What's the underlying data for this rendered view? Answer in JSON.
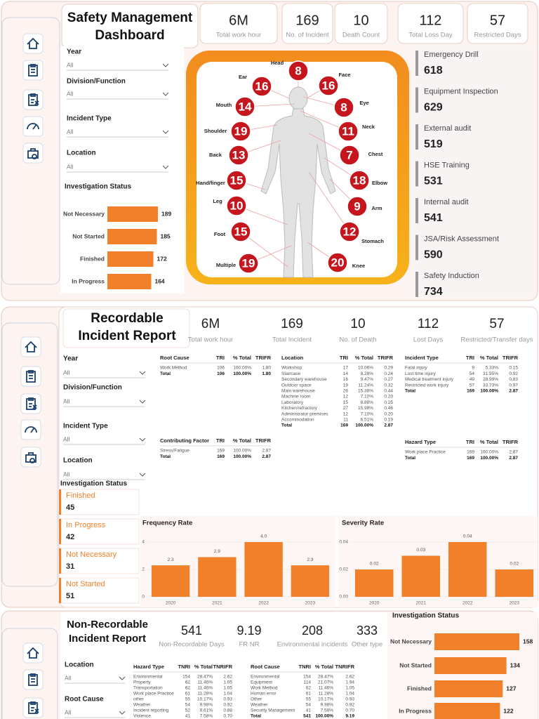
{
  "panel1": {
    "title": "Safety Management Dashboard",
    "kpis": [
      {
        "value": "6M",
        "label": "Total work hour"
      },
      {
        "value": 169,
        "label": "No. of Incident"
      },
      {
        "value": 10,
        "label": "Death Count"
      },
      {
        "value": 112,
        "label": "Total Loss Day"
      },
      {
        "value": 57,
        "label": "Restricted Days"
      }
    ],
    "filters": [
      {
        "label": "Year",
        "value": "All"
      },
      {
        "label": "Division/Function",
        "value": "All"
      },
      {
        "label": "Incident Type",
        "value": "All"
      },
      {
        "label": "Location",
        "value": "All"
      }
    ],
    "body_parts": [
      {
        "label": "Head",
        "value": 8
      },
      {
        "label": "Ear",
        "value": 16
      },
      {
        "label": "Face",
        "value": 16
      },
      {
        "label": "Mouth",
        "value": 14
      },
      {
        "label": "Eye",
        "value": 8
      },
      {
        "label": "Shoulder",
        "value": 19
      },
      {
        "label": "Neck",
        "value": 11
      },
      {
        "label": "Back",
        "value": 13
      },
      {
        "label": "Chest",
        "value": 7
      },
      {
        "label": "Hand/finger",
        "value": 15
      },
      {
        "label": "Elbow",
        "value": 18
      },
      {
        "label": "Leg",
        "value": 10
      },
      {
        "label": "Arm",
        "value": 9
      },
      {
        "label": "Foot",
        "value": 15
      },
      {
        "label": "Stomach",
        "value": 12
      },
      {
        "label": "Multiple",
        "value": 19
      },
      {
        "label": "Knee",
        "value": 20
      }
    ],
    "activities": [
      {
        "label": "Emergency Drill",
        "value": 618
      },
      {
        "label": "Equipment Inspection",
        "value": 629
      },
      {
        "label": "External audit",
        "value": 519
      },
      {
        "label": "HSE Training",
        "value": 531
      },
      {
        "label": "Internal audit",
        "value": 541
      },
      {
        "label": "JSA/Risk Assessment",
        "value": 590
      },
      {
        "label": "Safety Induction",
        "value": 734
      }
    ]
  },
  "panel2": {
    "title": "Recordable Incident Report",
    "kpis": [
      {
        "value": "6M",
        "label": "Total work hour"
      },
      {
        "value": 169,
        "label": "Total Incident"
      },
      {
        "value": 10,
        "label": "No. of Death"
      },
      {
        "value": 112,
        "label": "Lost Days"
      },
      {
        "value": 57,
        "label": "Restricted/Transfer days"
      }
    ],
    "filters": [
      {
        "label": "Year",
        "value": "All"
      },
      {
        "label": "Division/Function",
        "value": "All"
      },
      {
        "label": "Incident Type",
        "value": "All"
      },
      {
        "label": "Location",
        "value": "All"
      }
    ],
    "investigation_title": "Investigation Status",
    "status_cards": [
      {
        "label": "Finished",
        "value": 45
      },
      {
        "label": "In Progress",
        "value": 42
      },
      {
        "label": "Not Necessary",
        "value": 31
      },
      {
        "label": "Not Started",
        "value": 51
      }
    ],
    "tables": [
      {
        "columns": [
          "Root Cause",
          "TRI",
          "% Total",
          "TRIFR"
        ],
        "rows": [
          [
            "Work Method",
            "106",
            "100.00%",
            "1.80"
          ],
          [
            "Total",
            "106",
            "100.00%",
            "1.80"
          ]
        ]
      },
      {
        "columns": [
          "Location",
          "TRI",
          "% Total",
          "TRIFR"
        ],
        "rows": [
          [
            "Workshop",
            "17",
            "10.06%",
            "0.29"
          ],
          [
            "Staircase",
            "14",
            "8.28%",
            "0.24"
          ],
          [
            "Secondary warehouse",
            "16",
            "9.47%",
            "0.27"
          ],
          [
            "Outdoor space",
            "19",
            "11.24%",
            "0.32"
          ],
          [
            "Main warehouse",
            "26",
            "15.38%",
            "0.44"
          ],
          [
            "Machine room",
            "12",
            "7.10%",
            "0.20"
          ],
          [
            "Laboratory",
            "15",
            "8.88%",
            "0.25"
          ],
          [
            "Kitchen/refractory",
            "27",
            "15.98%",
            "0.46"
          ],
          [
            "Administrator premises",
            "12",
            "7.10%",
            "0.20"
          ],
          [
            "Accommodation",
            "11",
            "6.51%",
            "0.19"
          ],
          [
            "Total",
            "169",
            "100.00%",
            "2.87"
          ]
        ]
      },
      {
        "columns": [
          "Incident Type",
          "TRI",
          "% Total",
          "TRIFR"
        ],
        "rows": [
          [
            "Fatal injury",
            "9",
            "5.33%",
            "0.15"
          ],
          [
            "Lost time injury",
            "54",
            "31.95%",
            "0.92"
          ],
          [
            "Medical treatment injury",
            "49",
            "28.99%",
            "0.83"
          ],
          [
            "Restricted work injury",
            "57",
            "33.73%",
            "0.97"
          ],
          [
            "Total",
            "169",
            "100.00%",
            "2.87"
          ]
        ]
      },
      {
        "columns": [
          "Contributing Factor",
          "TRI",
          "% Total",
          "TRIFR"
        ],
        "rows": [
          [
            "Stress/Fatigue",
            "169",
            "100.00%",
            "2.87"
          ],
          [
            "Total",
            "169",
            "100.00%",
            "2.87"
          ]
        ]
      },
      {
        "columns": [
          "Hazard Type",
          "TRI",
          "% Total",
          "TRIFR"
        ],
        "rows": [
          [
            "Work place Practice",
            "169",
            "100.00%",
            "2.87"
          ],
          [
            "Total",
            "169",
            "100.00%",
            "2.87"
          ]
        ]
      }
    ]
  },
  "panel3": {
    "title": "Non-Recordable Incident Report",
    "kpis": [
      {
        "value": 541,
        "label": "Non-Recordable Days"
      },
      {
        "value": 9.19,
        "label": "FR NR"
      },
      {
        "value": 208,
        "label": "Environmental incidents"
      },
      {
        "value": 333,
        "label": "Other type"
      }
    ],
    "filters": [
      {
        "label": "Location",
        "value": "All"
      },
      {
        "label": "Root Cause",
        "value": "All"
      }
    ],
    "tables": [
      {
        "columns": [
          "Hazard Type",
          "TNRI",
          "% Total",
          "TNRIFR"
        ],
        "rows": [
          [
            "Environmental",
            "154",
            "28.47%",
            "2.62"
          ],
          [
            "Property",
            "62",
            "11.46%",
            "1.05"
          ],
          [
            "Transportation",
            "62",
            "11.46%",
            "1.05"
          ],
          [
            "Work place Practice",
            "61",
            "11.28%",
            "1.04"
          ],
          [
            "other",
            "55",
            "10.17%",
            "0.93"
          ],
          [
            "Weather",
            "54",
            "9.98%",
            "0.92"
          ],
          [
            "Incident reporting",
            "52",
            "9.61%",
            "0.88"
          ],
          [
            "Violence",
            "41",
            "7.58%",
            "0.70"
          ]
        ]
      },
      {
        "columns": [
          "Root Cause",
          "TNRI",
          "% Total",
          "TNRIFR"
        ],
        "rows": [
          [
            "Environmental",
            "154",
            "28.47%",
            "2.62"
          ],
          [
            "Equipment",
            "114",
            "21.07%",
            "1.94"
          ],
          [
            "Work Method",
            "62",
            "11.46%",
            "1.05"
          ],
          [
            "Human error",
            "61",
            "11.28%",
            "1.04"
          ],
          [
            "Other",
            "55",
            "10.17%",
            "0.93"
          ],
          [
            "Weather",
            "54",
            "9.98%",
            "0.92"
          ],
          [
            "Security Management",
            "41",
            "7.58%",
            "0.70"
          ],
          [
            "Total",
            "541",
            "100.00%",
            "9.19"
          ]
        ]
      }
    ]
  },
  "chart_data": [
    {
      "type": "bar",
      "orientation": "horizontal",
      "title": "Investigation Status",
      "categories": [
        "Not Necessary",
        "Not Started",
        "Finished",
        "In Progress"
      ],
      "values": [
        189,
        185,
        172,
        164
      ],
      "color": "#f0812a"
    },
    {
      "type": "bar",
      "title": "Frequency Rate",
      "categories": [
        "2020",
        "2021",
        "2022",
        "2023"
      ],
      "values": [
        2.3,
        2.9,
        4.0,
        2.3
      ],
      "value_labels": [
        "2.3",
        "2.9",
        "4.0",
        "2.3"
      ],
      "ylim": [
        0,
        4
      ],
      "yticks": [
        0,
        2,
        4
      ],
      "grid": true,
      "color": "#f0812a"
    },
    {
      "type": "bar",
      "title": "Severity Rate",
      "categories": [
        "2020",
        "2021",
        "2022",
        "2023"
      ],
      "values": [
        0.02,
        0.03,
        0.04,
        0.02
      ],
      "ylim": [
        0,
        0.04
      ],
      "yticks": [
        {
          "value": 0,
          "label": "0.00"
        },
        0.02,
        0.04
      ],
      "grid": true,
      "color": "#f0812a"
    },
    {
      "type": "bar",
      "orientation": "horizontal",
      "title": "Investigation Status",
      "categories": [
        "Not Necessary",
        "Not Started",
        "Finished",
        "In Progress"
      ],
      "values": [
        158,
        134,
        127,
        122
      ],
      "color": "#f0812a"
    }
  ]
}
